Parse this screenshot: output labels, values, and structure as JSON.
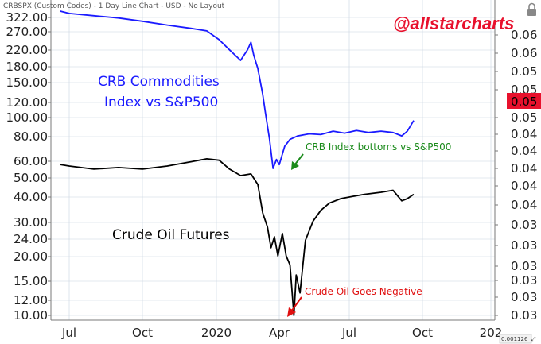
{
  "header": {
    "title": "CRBSPX (Custom Codes) - 1 Day Line Chart - USD - No Layout"
  },
  "brand": "@allstarcharts",
  "status_readout": "0.001126",
  "status_icon": "expand-icon",
  "colors": {
    "crb": "#1a1aff",
    "oil": "#000000",
    "flag": "#e8112d",
    "green": "#1a8a1a",
    "red": "#e01010",
    "grid": "#c8d3e0"
  },
  "chart_data": {
    "type": "line",
    "x_ticks": [
      "Jul",
      "Oct",
      "2020",
      "Apr",
      "Jul",
      "Oct",
      "202"
    ],
    "left_axis": {
      "scale": "log",
      "ticks": [
        "322.00",
        "270.00",
        "220.00",
        "180.00",
        "150.00",
        "120.00",
        "100.00",
        "80.00",
        "60.00",
        "50.00",
        "40.00",
        "30.00",
        "24.00",
        "20.00",
        "15.00",
        "12.00",
        "10.00"
      ]
    },
    "right_axis": {
      "ticks": [
        "0.06",
        "0.06",
        "0.05",
        "0.05",
        "0.05",
        "0.04",
        "0.04",
        "0.04",
        "0.04",
        "0.04",
        "0.03",
        "0.03",
        "0.03",
        "0.03",
        "0.03",
        "0.03"
      ],
      "last_value_flag": "0.05"
    },
    "series": [
      {
        "name": "CRB Commodities Index vs S&P500",
        "color": "#1a1aff",
        "axis": "right",
        "points": [
          [
            "2019-06-01",
            0.067
          ],
          [
            "2019-07-01",
            0.0665
          ],
          [
            "2019-08-01",
            0.066
          ],
          [
            "2019-09-01",
            0.0655
          ],
          [
            "2019-10-01",
            0.0648
          ],
          [
            "2019-11-01",
            0.064
          ],
          [
            "2019-12-01",
            0.0633
          ],
          [
            "2019-12-20",
            0.0628
          ],
          [
            "2020-01-05",
            0.061
          ],
          [
            "2020-01-20",
            0.059
          ],
          [
            "2020-02-05",
            0.057
          ],
          [
            "2020-02-15",
            0.059
          ],
          [
            "2020-02-20",
            0.0605
          ],
          [
            "2020-02-24",
            0.058
          ],
          [
            "2020-03-01",
            0.0555
          ],
          [
            "2020-03-08",
            0.051
          ],
          [
            "2020-03-12",
            0.048
          ],
          [
            "2020-03-18",
            0.044
          ],
          [
            "2020-03-23",
            0.04
          ],
          [
            "2020-03-28",
            0.0412
          ],
          [
            "2020-04-01",
            0.0405
          ],
          [
            "2020-04-08",
            0.043
          ],
          [
            "2020-04-15",
            0.044
          ],
          [
            "2020-04-25",
            0.0445
          ],
          [
            "2020-05-10",
            0.0448
          ],
          [
            "2020-05-25",
            0.0447
          ],
          [
            "2020-06-10",
            0.0452
          ],
          [
            "2020-06-25",
            0.0449
          ],
          [
            "2020-07-10",
            0.0453
          ],
          [
            "2020-07-25",
            0.045
          ],
          [
            "2020-08-10",
            0.0452
          ],
          [
            "2020-08-25",
            0.045
          ],
          [
            "2020-09-05",
            0.0445
          ],
          [
            "2020-09-12",
            0.0452
          ],
          [
            "2020-09-20",
            0.0468
          ]
        ]
      },
      {
        "name": "Crude Oil Futures",
        "color": "#000000",
        "axis": "left",
        "points": [
          [
            "2019-06-01",
            58
          ],
          [
            "2019-07-01",
            57
          ],
          [
            "2019-08-01",
            55
          ],
          [
            "2019-09-01",
            56
          ],
          [
            "2019-10-01",
            55
          ],
          [
            "2019-11-01",
            57
          ],
          [
            "2019-12-01",
            60
          ],
          [
            "2019-12-20",
            62
          ],
          [
            "2020-01-05",
            61
          ],
          [
            "2020-01-20",
            55
          ],
          [
            "2020-02-05",
            51
          ],
          [
            "2020-02-20",
            52
          ],
          [
            "2020-03-01",
            46
          ],
          [
            "2020-03-08",
            33
          ],
          [
            "2020-03-15",
            28
          ],
          [
            "2020-03-20",
            22
          ],
          [
            "2020-03-25",
            25
          ],
          [
            "2020-03-30",
            20
          ],
          [
            "2020-04-05",
            26
          ],
          [
            "2020-04-10",
            20
          ],
          [
            "2020-04-15",
            18
          ],
          [
            "2020-04-20",
            10
          ],
          [
            "2020-04-23",
            16
          ],
          [
            "2020-04-28",
            13
          ],
          [
            "2020-05-05",
            24
          ],
          [
            "2020-05-15",
            30
          ],
          [
            "2020-05-25",
            34
          ],
          [
            "2020-06-05",
            37
          ],
          [
            "2020-06-20",
            39
          ],
          [
            "2020-07-05",
            40
          ],
          [
            "2020-07-20",
            41
          ],
          [
            "2020-08-10",
            42
          ],
          [
            "2020-08-25",
            43
          ],
          [
            "2020-09-05",
            38
          ],
          [
            "2020-09-12",
            39
          ],
          [
            "2020-09-20",
            41
          ]
        ]
      }
    ],
    "annotations": [
      {
        "name": "crb-label",
        "lines": [
          "CRB Commodities",
          "Index vs S&P500"
        ]
      },
      {
        "name": "oil-label",
        "text": "Crude Oil Futures"
      },
      {
        "name": "crb-bottom-note",
        "text": "CRB Index bottoms vs S&P500"
      },
      {
        "name": "oil-negative-note",
        "text": "Crude Oil Goes Negative"
      }
    ]
  }
}
